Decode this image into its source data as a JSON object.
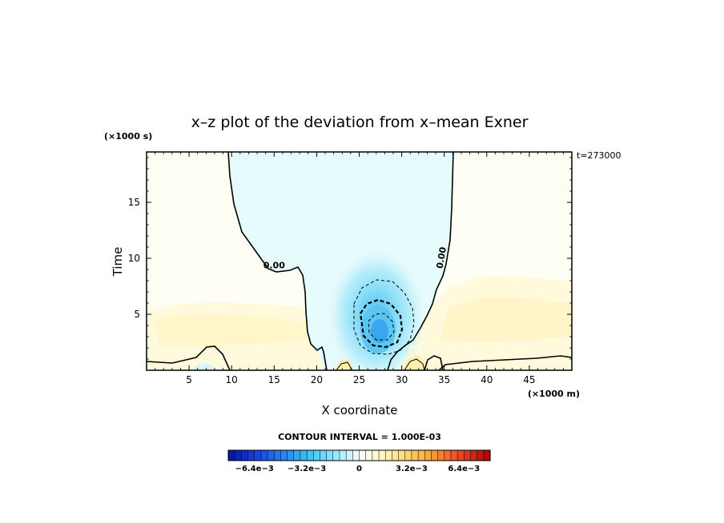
{
  "chart_data": {
    "type": "heatmap",
    "title": "x–z plot of the deviation from x–mean Exner",
    "xlabel": "X coordinate",
    "ylabel": "Time",
    "x_unit_label": "(×1000 m)",
    "y_unit_label": "(×1000 s)",
    "time_label": "t=273000",
    "xlim": [
      0,
      50
    ],
    "ylim": [
      0,
      19.5
    ],
    "x_ticks": [
      5,
      10,
      15,
      20,
      25,
      30,
      35,
      40,
      45
    ],
    "y_ticks": [
      5,
      10,
      15
    ],
    "contour_interval_label": "CONTOUR INTERVAL = 1.000E-03",
    "contour_labels": [
      {
        "text": "0.00",
        "x": 15,
        "y": 9.1,
        "rotate": 0
      },
      {
        "text": "0.00",
        "x": 35,
        "y": 10.0,
        "rotate": -80
      }
    ],
    "colorbar": {
      "ticks": [
        "−6.4e−3",
        "−3.2e−3",
        "0",
        "3.2e−3",
        "6.4e−3"
      ],
      "tick_values": [
        -0.0064,
        -0.0032,
        0,
        0.0032,
        0.0064
      ],
      "min": -0.008,
      "max": 0.008,
      "step": 0.0004
    },
    "field": {
      "negative_core": {
        "x": 27.3,
        "y": 3.5,
        "value": -0.0034
      },
      "positive_band": {
        "y": 3.8,
        "value": 0.0009
      }
    }
  }
}
